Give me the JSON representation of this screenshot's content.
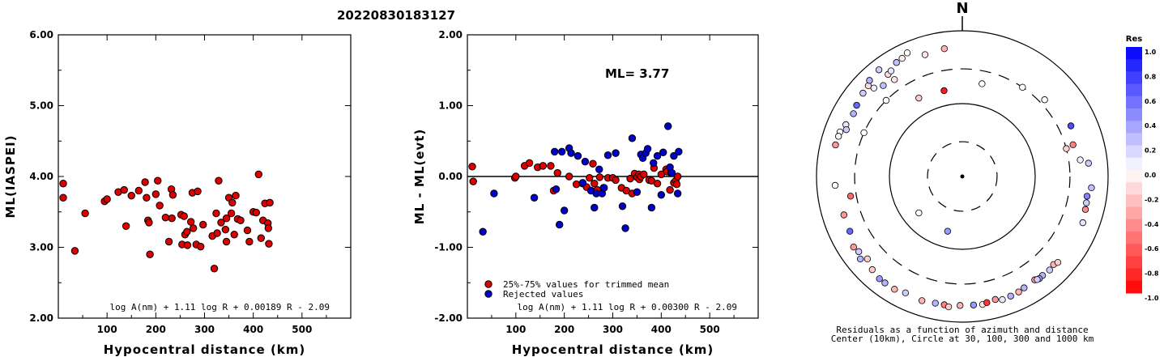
{
  "header": {
    "event_id": "20220830183127"
  },
  "chart_data": [
    {
      "type": "scatter",
      "title": "",
      "xlabel": "Hypocentral distance (km)",
      "ylabel": "ML(IASPEI)",
      "xlim": [
        0,
        600
      ],
      "ylim": [
        2.0,
        6.0
      ],
      "x_ticks": [
        "100",
        "200",
        "300",
        "400",
        "500"
      ],
      "y_ticks": [
        "2.00",
        "3.00",
        "4.00",
        "5.00",
        "6.00"
      ],
      "formula": "log A(nm) + 1.11 log R + 0.00189 R - 2.09",
      "series": [
        {
          "color": "#dd0000",
          "x": [
            10,
            10,
            34,
            55,
            95,
            100,
            123,
            135,
            139,
            150,
            165,
            178,
            181,
            184,
            186,
            188,
            200,
            204,
            208,
            220,
            227,
            232,
            233,
            235,
            252,
            254,
            258,
            260,
            264,
            265,
            272,
            275,
            277,
            283,
            286,
            292,
            297,
            316,
            320,
            324,
            326,
            329,
            334,
            343,
            345,
            345,
            350,
            355,
            357,
            361,
            364,
            368,
            374,
            388,
            392,
            400,
            406,
            411,
            416,
            420,
            424,
            430,
            431,
            432,
            434
          ],
          "y": [
            3.9,
            3.7,
            2.95,
            3.48,
            3.65,
            3.68,
            3.78,
            3.81,
            3.3,
            3.73,
            3.8,
            3.92,
            3.7,
            3.38,
            3.35,
            2.9,
            3.75,
            3.94,
            3.59,
            3.42,
            3.08,
            3.82,
            3.41,
            3.74,
            3.46,
            3.04,
            3.44,
            3.18,
            3.22,
            3.03,
            3.36,
            3.77,
            3.27,
            3.04,
            3.79,
            3.01,
            3.32,
            3.16,
            2.7,
            3.48,
            3.2,
            3.94,
            3.35,
            3.25,
            3.41,
            3.08,
            3.7,
            3.48,
            3.63,
            3.18,
            3.73,
            3.4,
            3.38,
            3.24,
            3.08,
            3.5,
            3.49,
            4.03,
            3.13,
            3.38,
            3.62,
            3.34,
            3.27,
            3.05,
            3.63
          ]
        }
      ]
    },
    {
      "type": "scatter",
      "title": "",
      "xlabel": "Hypocentral distance (km)",
      "ylabel": "ML - ML(evt)",
      "xlim": [
        0,
        600
      ],
      "ylim": [
        -2.0,
        2.0
      ],
      "x_ticks": [
        "100",
        "200",
        "300",
        "400",
        "500"
      ],
      "y_ticks": [
        "-2.00",
        "-1.00",
        "0.00",
        "1.00",
        "2.00"
      ],
      "annotation": "ML= 3.77",
      "reference_line": 0.0,
      "formula": "log A(nm) + 1.11 log R + 0.00300 R - 2.09",
      "legend": {
        "position": "bottom-left",
        "entries": [
          "25%-75% values for trimmed mean",
          "Rejected values"
        ]
      },
      "series": [
        {
          "name": "25%-75% values for trimmed mean",
          "color": "#dd0000",
          "x": [
            10,
            12,
            98,
            100,
            118,
            128,
            145,
            156,
            172,
            178,
            186,
            210,
            225,
            238,
            246,
            252,
            259,
            262,
            268,
            273,
            281,
            290,
            300,
            306,
            318,
            328,
            336,
            340,
            345,
            350,
            354,
            355,
            358,
            364,
            375,
            380,
            385,
            392,
            400,
            410,
            412,
            418,
            420,
            426,
            430,
            432,
            434
          ],
          "y": [
            0.14,
            -0.07,
            -0.02,
            0.0,
            0.15,
            0.19,
            0.13,
            0.15,
            0.15,
            -0.2,
            0.05,
            0.0,
            -0.11,
            -0.1,
            -0.15,
            -0.02,
            0.18,
            -0.1,
            -0.19,
            -0.01,
            -0.16,
            -0.02,
            -0.02,
            -0.05,
            -0.16,
            -0.2,
            -0.03,
            -0.24,
            0.04,
            -0.01,
            0.03,
            -0.04,
            0.0,
            0.03,
            -0.05,
            -0.06,
            0.12,
            -0.1,
            0.03,
            0.1,
            0.07,
            -0.19,
            0.05,
            -0.09,
            -0.06,
            -0.11,
            0.0
          ]
        },
        {
          "name": "Rejected values",
          "color": "#0000cc",
          "x": [
            32,
            55,
            138,
            180,
            183,
            190,
            195,
            200,
            210,
            214,
            228,
            238,
            243,
            255,
            262,
            266,
            272,
            278,
            282,
            290,
            306,
            320,
            326,
            340,
            350,
            358,
            362,
            368,
            372,
            380,
            384,
            392,
            400,
            404,
            414,
            418,
            422,
            426,
            434,
            436
          ],
          "y": [
            -0.78,
            -0.24,
            -0.3,
            0.35,
            -0.18,
            -0.68,
            0.35,
            -0.48,
            0.4,
            0.33,
            0.29,
            -0.09,
            0.21,
            -0.2,
            -0.44,
            -0.24,
            0.1,
            -0.24,
            -0.16,
            0.3,
            0.33,
            -0.42,
            -0.73,
            0.54,
            -0.22,
            0.31,
            0.26,
            0.33,
            0.39,
            -0.44,
            0.19,
            0.29,
            -0.26,
            0.34,
            0.71,
            0.13,
            0.05,
            0.29,
            -0.24,
            0.35
          ]
        }
      ]
    },
    {
      "type": "scatter",
      "subtype": "polar-azimuth",
      "north_label": "N",
      "caption_lines": [
        "Residuals as a function of azimuth and distance",
        "Center (10km), Circle at 30, 100, 300 and 1000 km"
      ],
      "colorbar": {
        "title": "Res",
        "ticks": [
          "1.0",
          "0.8",
          "0.6",
          "0.4",
          "0.2",
          "0.0",
          "-0.2",
          "-0.4",
          "-0.6",
          "-0.8",
          "-1.0"
        ],
        "positive_color": "#0000ff",
        "negative_color": "#ff0000"
      },
      "points": {
        "azimuth_deg": [
          315,
          324,
          326,
          330,
          333,
          336,
          304,
          310,
          314,
          316,
          322,
          343,
          325,
          319,
          300,
          294,
          292,
          290,
          288,
          284,
          352,
          34,
          12,
          47,
          65,
          74,
          82,
          84,
          95,
          99,
          105,
          102,
          111,
          266,
          260,
          252,
          244,
          229,
          234,
          237,
          231,
          224,
          219,
          216,
          211,
          206,
          198,
          192,
          188,
          186,
          181,
          175,
          171,
          169,
          165,
          162,
          158,
          154,
          151,
          145,
          141,
          143,
          144,
          137,
          134,
          132,
          348,
          331,
          315,
          294,
          75,
          195,
          230
        ],
        "distance_km": [
          520,
          540,
          560,
          640,
          660,
          720,
          560,
          600,
          620,
          680,
          720,
          560,
          420,
          450,
          530,
          560,
          520,
          610,
          610,
          620,
          590,
          300,
          200,
          350,
          440,
          380,
          430,
          550,
          600,
          540,
          560,
          550,
          590,
          560,
          360,
          510,
          520,
          530,
          570,
          600,
          630,
          600,
          640,
          640,
          640,
          600,
          620,
          600,
          600,
          630,
          590,
          590,
          600,
          580,
          560,
          600,
          590,
          580,
          560,
          540,
          560,
          570,
          560,
          570,
          550,
          580,
          160,
          170,
          300,
          300,
          300,
          60,
          60
        ],
        "residual": [
          0.05,
          -0.15,
          0.1,
          0.25,
          -0.05,
          0.0,
          0.6,
          0.2,
          -0.15,
          0.3,
          0.2,
          -0.1,
          -0.1,
          0.25,
          0.3,
          0.1,
          0.2,
          0.0,
          0.05,
          -0.4,
          -0.3,
          0.0,
          0.0,
          0.0,
          0.7,
          -0.5,
          0.05,
          0.2,
          0.25,
          0.5,
          -0.45,
          0.2,
          0.1,
          0.0,
          -0.6,
          -0.4,
          0.6,
          -0.2,
          0.2,
          -0.4,
          0.3,
          -0.2,
          0.4,
          0.3,
          -0.3,
          0.2,
          -0.3,
          0.3,
          -0.5,
          -0.2,
          -0.3,
          0.4,
          -0.1,
          -0.8,
          -0.4,
          0.1,
          0.3,
          -0.3,
          0.3,
          -0.4,
          0.3,
          0.4,
          0.2,
          0.2,
          -0.3,
          -0.2,
          -0.9,
          -0.2,
          0.0,
          0.0,
          -0.2,
          0.4,
          0.0
        ]
      }
    }
  ]
}
